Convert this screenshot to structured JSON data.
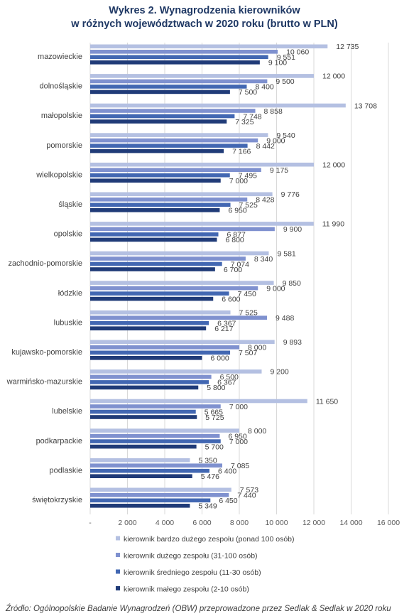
{
  "chart_data": {
    "type": "bar",
    "orientation": "horizontal",
    "title_lines": [
      "Wykres 2. Wynagrodzenia kierowników",
      "w różnych województwach w 2020 roku (brutto w PLN)"
    ],
    "categories": [
      "mazowieckie",
      "dolnośląskie",
      "małopolskie",
      "pomorskie",
      "wielkopolskie",
      "śląskie",
      "opolskie",
      "zachodnio-pomorskie",
      "łódzkie",
      "lubuskie",
      "kujawsko-pomorskie",
      "warmińsko-mazurskie",
      "lubelskie",
      "podkarpackie",
      "podlaskie",
      "świętokrzyskie"
    ],
    "series": [
      {
        "name": "kierownik bardzo dużego zespołu (ponad 100 osób)",
        "color": "#b4c0e2",
        "values": [
          12735,
          12000,
          13708,
          9540,
          12000,
          9776,
          11990,
          9581,
          9850,
          7525,
          9893,
          9200,
          11650,
          8000,
          5350,
          7573
        ]
      },
      {
        "name": "kierownik dużego zespołu (31-100 osób)",
        "color": "#7f91cf",
        "values": [
          10060,
          9500,
          8858,
          9000,
          9175,
          8428,
          9900,
          8340,
          9000,
          9488,
          8000,
          6500,
          7000,
          6950,
          7085,
          7440
        ]
      },
      {
        "name": "kierownik średniego zespołu (11-30 osób)",
        "color": "#4267b2",
        "values": [
          9551,
          8400,
          7748,
          8442,
          7495,
          7525,
          6877,
          7074,
          7450,
          6367,
          7507,
          6367,
          5665,
          7000,
          6400,
          6450
        ]
      },
      {
        "name": "kierownik małego zespołu (2-10 osób)",
        "color": "#203b78",
        "values": [
          9100,
          7500,
          7325,
          7166,
          7000,
          6950,
          6800,
          6700,
          6600,
          6217,
          6000,
          5800,
          5725,
          5700,
          5476,
          5349
        ]
      }
    ],
    "value_labels": [
      [
        "12 735",
        "12 000",
        "13 708",
        "9 540",
        "12 000",
        "9 776",
        "11 990",
        "9 581",
        "9 850",
        "7 525",
        "9 893",
        "9 200",
        "11 650",
        "8 000",
        "5 350",
        "7 573"
      ],
      [
        "10 060",
        "9 500",
        "8 858",
        "9 000",
        "9 175",
        "8 428",
        "9 900",
        "8 340",
        "9 000",
        "9 488",
        "8 000",
        "6 500",
        "7 000",
        "6 950",
        "7 085",
        "7 440"
      ],
      [
        "9 551",
        "8 400",
        "7 748",
        "8 442",
        "7 495",
        "7 525",
        "6 877",
        "7 074",
        "7 450",
        "6 367",
        "7 507",
        "6 367",
        "5 665",
        "7 000",
        "6 400",
        "6 450"
      ],
      [
        "9 100",
        "7 500",
        "7 325",
        "7 166",
        "7 000",
        "6 950",
        "6 800",
        "6 700",
        "6 600",
        "6 217",
        "6 000",
        "5 800",
        "5 725",
        "5 700",
        "5 476",
        "5 349"
      ]
    ],
    "xlim": [
      0,
      16000
    ],
    "xticks": [
      0,
      2000,
      4000,
      6000,
      8000,
      10000,
      12000,
      14000,
      16000
    ],
    "xtick_labels": [
      "-",
      "2 000",
      "4 000",
      "6 000",
      "8 000",
      "10 000",
      "12 000",
      "14 000",
      "16 000"
    ],
    "grid": true,
    "legend_position": "bottom"
  },
  "source": "Źródło: Ogólnopolskie Badanie Wynagrodzeń (OBW) przeprowadzone przez Sedlak & Sedlak w 2020 roku"
}
